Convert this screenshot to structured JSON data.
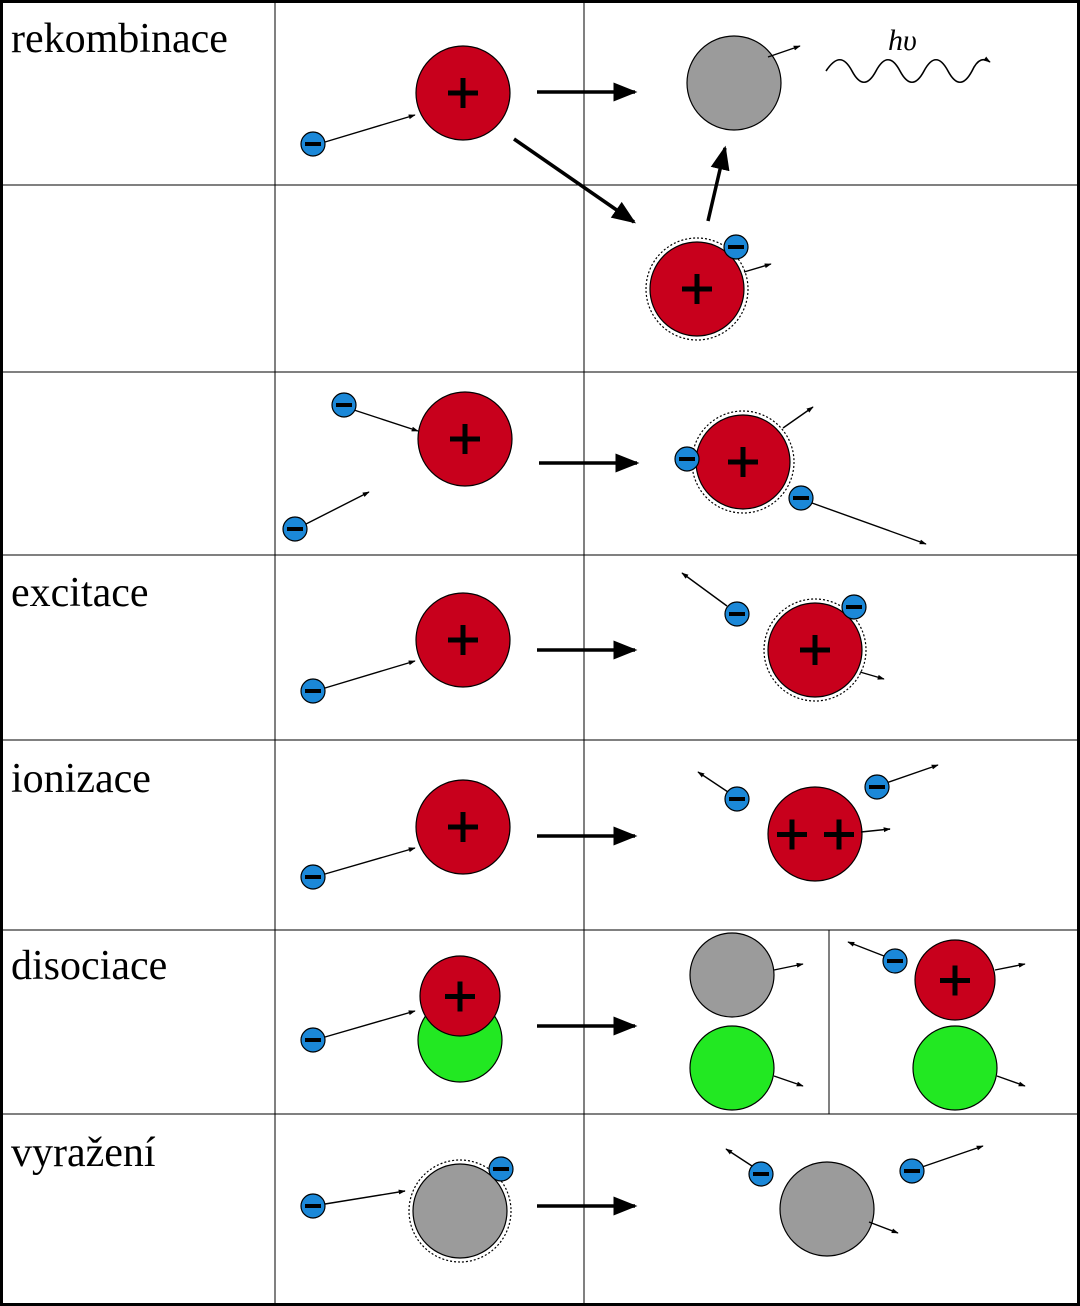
{
  "rows": [
    {
      "label": "rekombinace"
    },
    {
      "label": ""
    },
    {
      "label": ""
    },
    {
      "label": "excitace"
    },
    {
      "label": "ionizace"
    },
    {
      "label": "disociace"
    },
    {
      "label": "vyražení"
    }
  ],
  "photon_label": "hυ",
  "colors": {
    "ion": "#c8001c",
    "electron": "#1b88d8",
    "neutral": "#9b9b9b",
    "fragment": "#22e822"
  },
  "icons": {
    "ion": "plus-sign",
    "electron": "minus-sign"
  }
}
